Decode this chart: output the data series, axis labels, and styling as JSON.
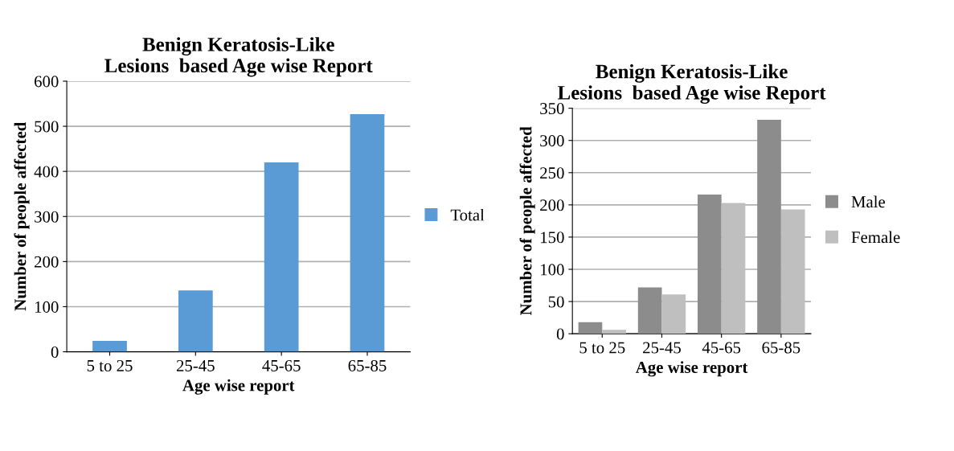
{
  "chart_data": [
    {
      "type": "bar",
      "title": "Benign Keratosis-Like\nLesions  based Age wise Report",
      "xlabel": "Age wise report",
      "ylabel": "Number of people affected",
      "categories": [
        "5 to 25",
        "25-45",
        "45-65",
        "65-85"
      ],
      "series": [
        {
          "name": "Total",
          "color": "#5b9bd5",
          "values": [
            24,
            136,
            420,
            527
          ]
        }
      ],
      "ylim": [
        0,
        600
      ],
      "yticks": [
        0,
        100,
        200,
        300,
        400,
        500,
        600
      ],
      "grid": "y",
      "legend": "right"
    },
    {
      "type": "bar",
      "title": "Benign Keratosis-Like\nLesions  based Age wise Report",
      "xlabel": "Age wise report",
      "ylabel": "Number of people affected",
      "categories": [
        "5 to 25",
        "25-45",
        "45-65",
        "65-85"
      ],
      "series": [
        {
          "name": "Male",
          "color": "#8c8c8c",
          "values": [
            18,
            72,
            216,
            332
          ]
        },
        {
          "name": "Female",
          "color": "#bfbfbf",
          "values": [
            6,
            61,
            203,
            193
          ]
        }
      ],
      "ylim": [
        0,
        350
      ],
      "yticks": [
        0,
        50,
        100,
        150,
        200,
        250,
        300,
        350
      ],
      "grid": "y",
      "legend": "right"
    }
  ]
}
